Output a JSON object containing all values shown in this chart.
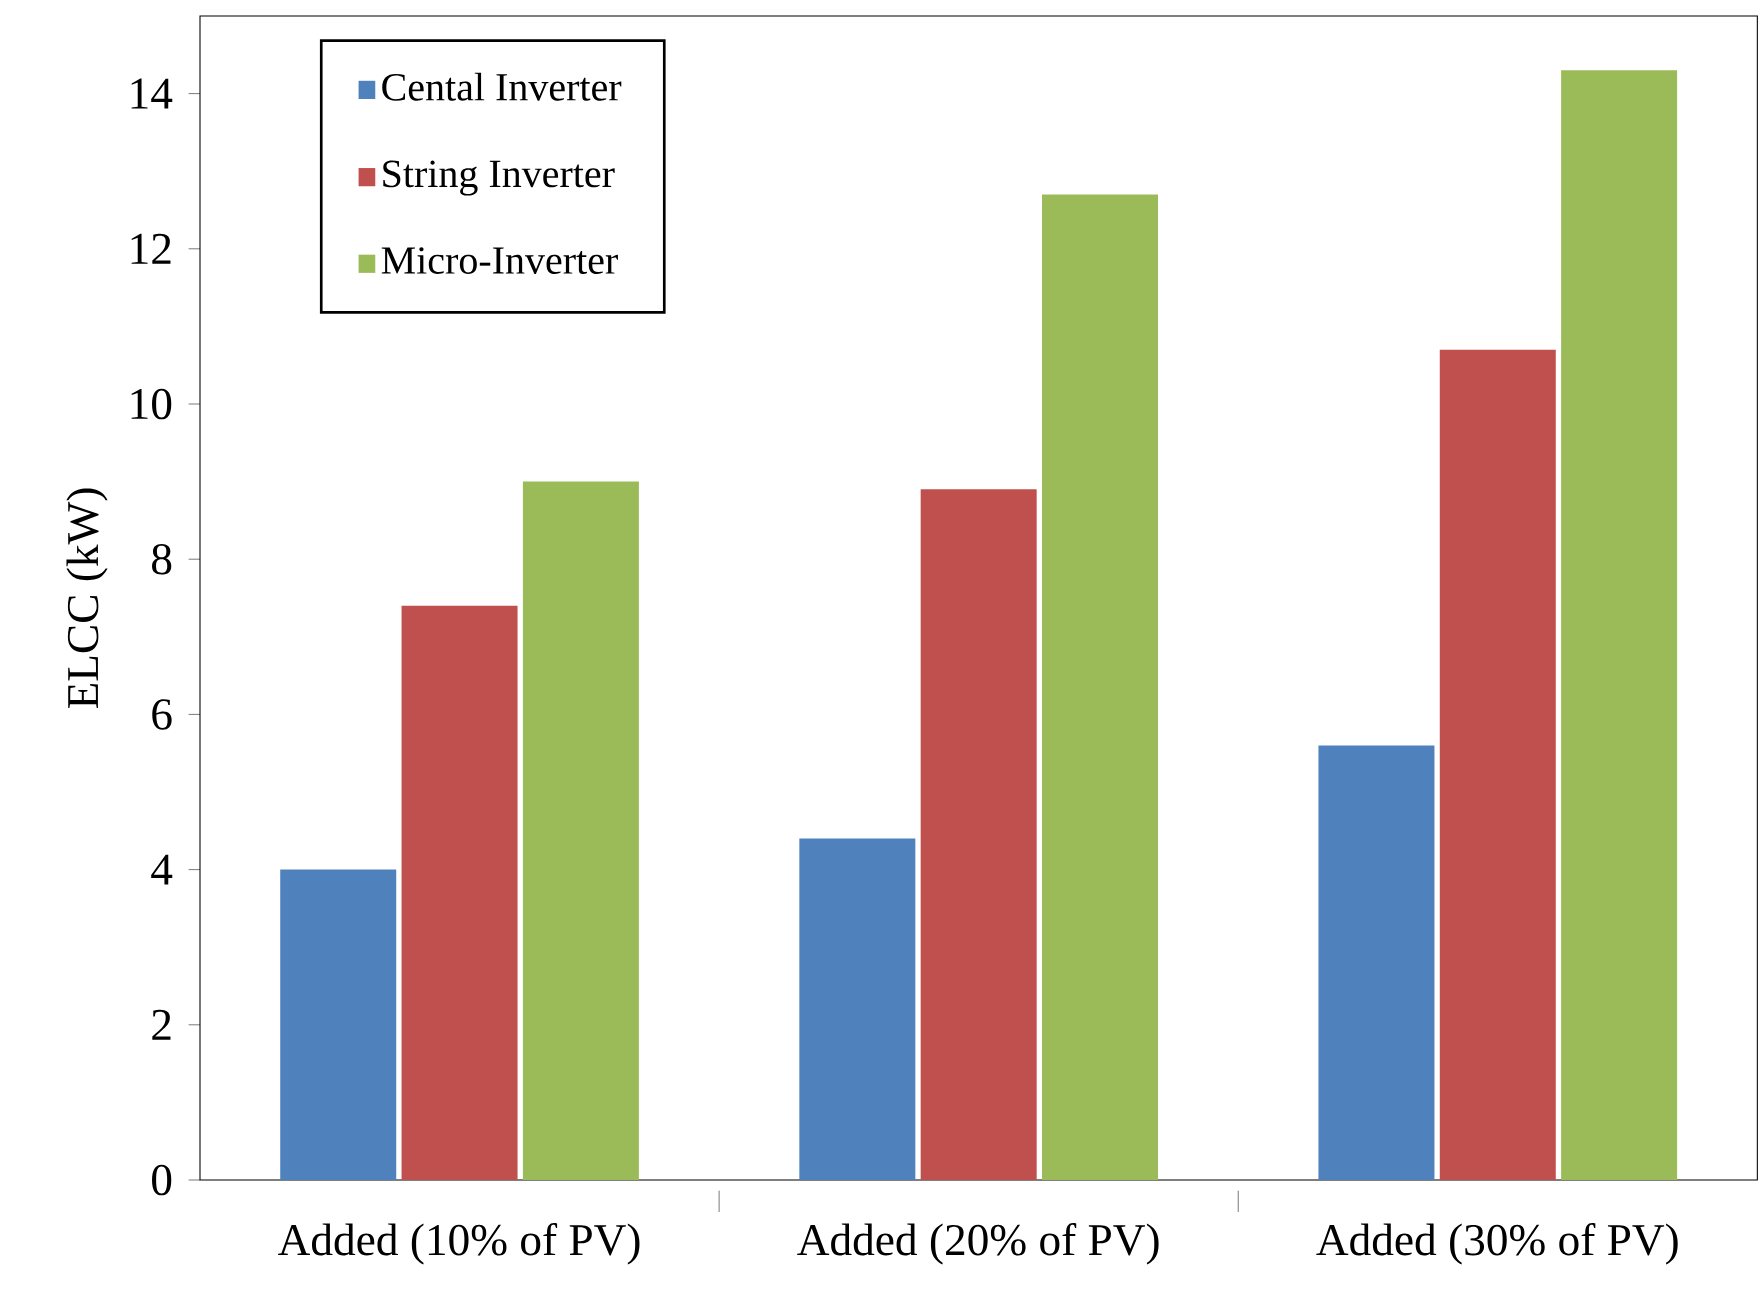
{
  "chart_data": {
    "type": "bar",
    "ylabel": "ELCC (kW)",
    "categories": [
      "Added (10% of PV)",
      "Added (20% of PV)",
      "Added (30% of PV)"
    ],
    "series": [
      {
        "name": "Cental Inverter",
        "color": "#4f81bd",
        "values": [
          4.0,
          4.4,
          5.6
        ]
      },
      {
        "name": "String Inverter",
        "color": "#c0504d",
        "values": [
          7.4,
          8.9,
          10.7
        ]
      },
      {
        "name": "Micro-Inverter",
        "color": "#9bbb59",
        "values": [
          9.0,
          12.7,
          14.3
        ]
      }
    ],
    "ylim": [
      0,
      15
    ],
    "yticks": [
      0,
      2,
      4,
      6,
      8,
      10,
      12,
      14
    ],
    "grid": false,
    "legend": "top left"
  }
}
